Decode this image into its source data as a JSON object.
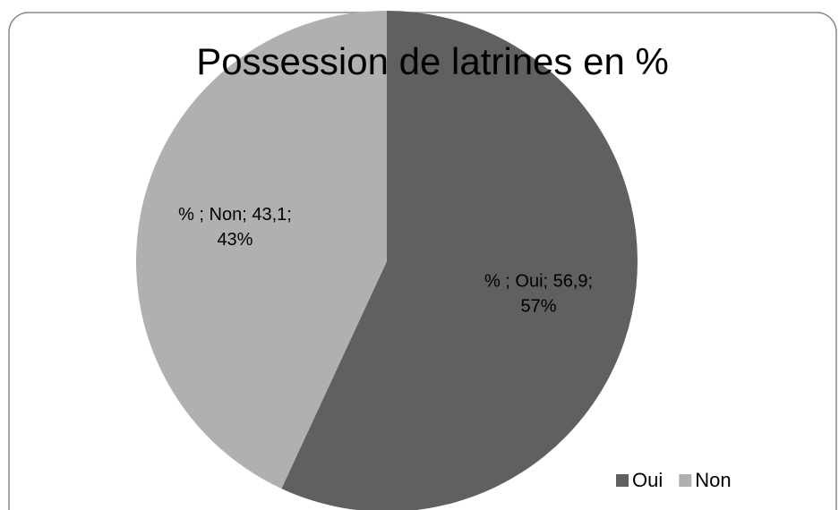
{
  "chart_data": {
    "type": "pie",
    "title": "Possession de latrines en %",
    "categories": [
      "Oui",
      "Non"
    ],
    "values": [
      56.9,
      43.1
    ],
    "value_labels": [
      [
        "% ; Oui; 56,9;",
        "57%"
      ],
      [
        "% ; Non; 43,1;",
        "43%"
      ]
    ],
    "colors": [
      "#606060",
      "#b0b0b0"
    ],
    "legend": "bottom-right"
  }
}
